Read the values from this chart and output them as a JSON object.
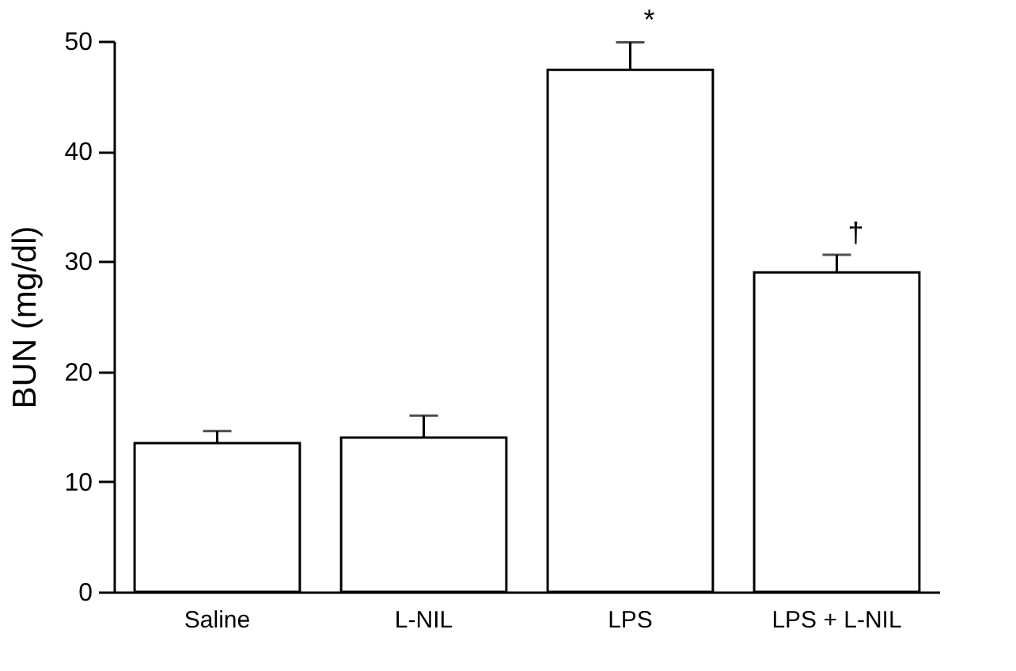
{
  "chart_data": {
    "type": "bar",
    "ylabel": "BUN (mg/dl)",
    "categories": [
      "Saline",
      "L-NIL",
      "LPS",
      "LPS + L-NIL"
    ],
    "values": [
      13.5,
      14.0,
      47.4,
      29.0
    ],
    "errors": [
      [
        13.5,
        14.6
      ],
      [
        14.0,
        16.0
      ],
      [
        47.4,
        49.9
      ],
      [
        29.0,
        30.6
      ]
    ],
    "color": "#ffffff",
    "ylim": [
      0,
      50
    ],
    "yticks": [
      0,
      10,
      20,
      30,
      40,
      50
    ],
    "grid": false,
    "annotations": [
      {
        "text": "*",
        "x": "LPS",
        "y": 49.9
      },
      {
        "text": "†",
        "x": "LPS + L-NIL",
        "y": 30.6
      }
    ]
  }
}
